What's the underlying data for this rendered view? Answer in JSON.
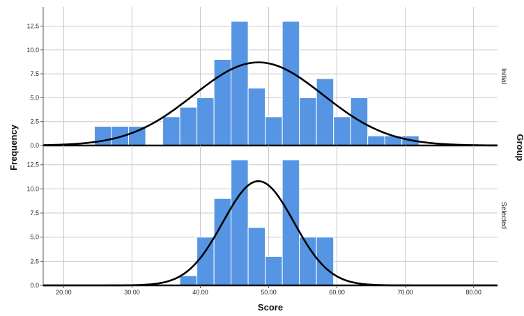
{
  "chart_data": {
    "type": "bar",
    "xlabel": "Score",
    "ylabel": "Frequency",
    "panel_title": "Group",
    "xlim": [
      17,
      83.5
    ],
    "ylim": [
      0,
      14.5
    ],
    "x_ticks": [
      "20.00",
      "30.00",
      "40.00",
      "50.00",
      "60.00",
      "70.00",
      "80.00"
    ],
    "y_ticks": [
      "0.0",
      "2.5",
      "5.0",
      "7.5",
      "10.0",
      "12.5"
    ],
    "bin_width": 2.5,
    "bar_color": "#5595e3",
    "curve_color": "#000000",
    "grid": true,
    "panels": [
      {
        "label": "Initial",
        "bins": [
          {
            "x0": 24.5,
            "count": 2
          },
          {
            "x0": 27.0,
            "count": 2
          },
          {
            "x0": 29.5,
            "count": 2
          },
          {
            "x0": 34.5,
            "count": 3
          },
          {
            "x0": 37.0,
            "count": 4
          },
          {
            "x0": 39.5,
            "count": 5
          },
          {
            "x0": 42.0,
            "count": 9
          },
          {
            "x0": 44.5,
            "count": 13
          },
          {
            "x0": 47.0,
            "count": 6
          },
          {
            "x0": 49.5,
            "count": 3
          },
          {
            "x0": 52.0,
            "count": 13
          },
          {
            "x0": 54.5,
            "count": 5
          },
          {
            "x0": 57.0,
            "count": 7
          },
          {
            "x0": 59.5,
            "count": 3
          },
          {
            "x0": 62.0,
            "count": 5
          },
          {
            "x0": 64.5,
            "count": 1
          },
          {
            "x0": 67.0,
            "count": 1
          },
          {
            "x0": 69.5,
            "count": 1
          }
        ],
        "normal_curve": {
          "mean": 48.5,
          "peak": 8.7,
          "sd": 9.5
        }
      },
      {
        "label": "Selected",
        "bins": [
          {
            "x0": 37.0,
            "count": 1
          },
          {
            "x0": 39.5,
            "count": 5
          },
          {
            "x0": 42.0,
            "count": 9
          },
          {
            "x0": 44.5,
            "count": 13
          },
          {
            "x0": 47.0,
            "count": 6
          },
          {
            "x0": 49.5,
            "count": 3
          },
          {
            "x0": 52.0,
            "count": 13
          },
          {
            "x0": 54.5,
            "count": 5
          },
          {
            "x0": 57.0,
            "count": 5
          }
        ],
        "normal_curve": {
          "mean": 48.5,
          "peak": 10.8,
          "sd": 5.2
        }
      }
    ]
  }
}
